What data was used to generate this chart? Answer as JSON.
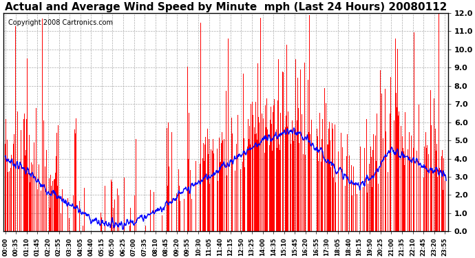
{
  "title": "Actual and Average Wind Speed by Minute  mph (Last 24 Hours) 20080112",
  "copyright": "Copyright 2008 Cartronics.com",
  "ylim": [
    0.0,
    12.0
  ],
  "yticks": [
    0.0,
    1.0,
    2.0,
    3.0,
    4.0,
    5.0,
    6.0,
    7.0,
    8.0,
    9.0,
    10.0,
    11.0,
    12.0
  ],
  "bar_color": "#FF0000",
  "line_color": "#0000FF",
  "background_color": "#FFFFFF",
  "grid_color": "#AAAAAA",
  "title_fontsize": 11,
  "copyright_fontsize": 7,
  "n_minutes": 1440,
  "tick_interval": 35
}
